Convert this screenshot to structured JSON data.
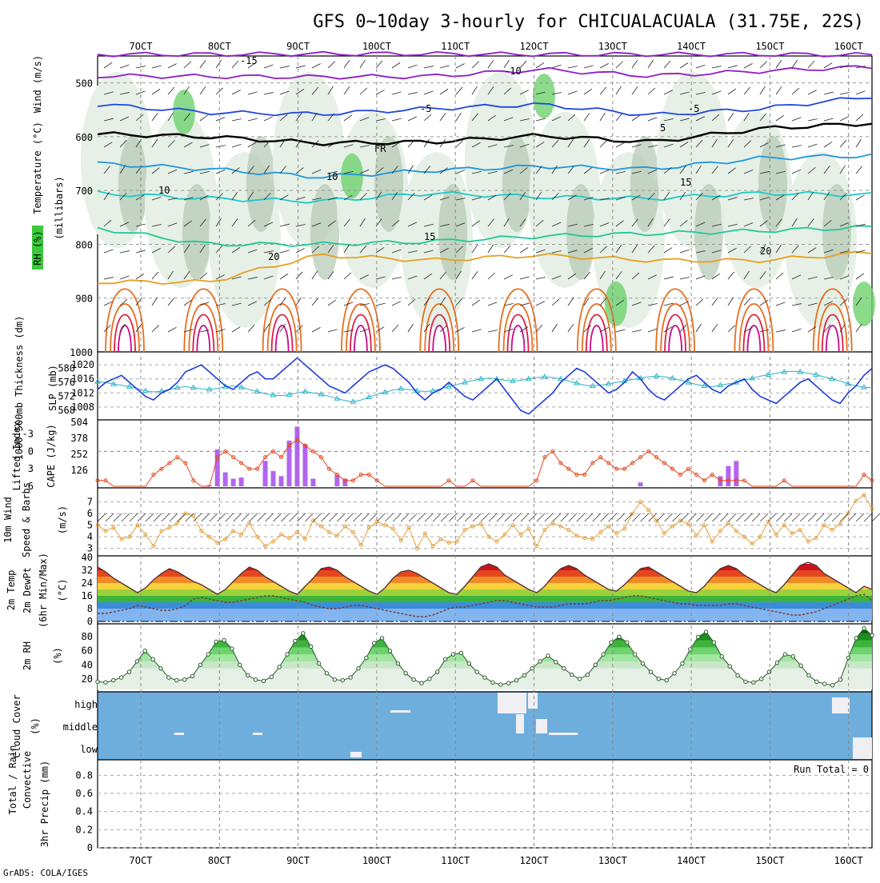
{
  "title": "GFS 0~10day 3-hourly for CHICUALACUALA (31.75E, 22S)",
  "footer": "GrADS: COLA/IGES",
  "time_labels": [
    "7OCT",
    "8OCT",
    "9OCT",
    "10OCT",
    "11OCT",
    "12OCT",
    "13OCT",
    "14OCT",
    "15OCT",
    "16OCT"
  ],
  "colors": {
    "rh_light": "#e6f0e6",
    "rh_mid": "#b4c8b4",
    "rh_dark": "#6ed26e",
    "temp_colors": [
      "#8c1ec8",
      "#1e46dc",
      "#1e96dc",
      "#1ec8c8",
      "#1ec896",
      "#e6a01e",
      "#e66e1e",
      "#dc1e46",
      "#c80a8c"
    ],
    "slp": "#1e3cdc",
    "thickness": "#28b4c8",
    "lifted": "#e6461e",
    "cape": "#b464f0",
    "wind": "#e6a03c",
    "cloud": "#6eaedc",
    "bands": [
      "#c8141e",
      "#e6461e",
      "#f08c28",
      "#f5d23c",
      "#9bd23c",
      "#3cb43c",
      "#3c8cdc",
      "#82b4f0"
    ]
  },
  "panel_labels": {
    "upper_rh": "RH (%)",
    "upper_temp": "Temperature (°C)",
    "upper_wind": "Wind (m/s)",
    "upper_pressure": "(millibars)",
    "thick": "1000-500mb Thickness (dm)",
    "slp": "SLP (mb)",
    "lifted": "Lifted Index",
    "cape": "CAPE (J/kg)",
    "wind10": "10m Wind",
    "wind_sb": "Speed & Barbs",
    "wind_unit": "(m/s)",
    "t2m_a": "2m Temp",
    "t2m_b": "2m DewPt",
    "t2m_c": "(6hr Min/Max)",
    "t2m_unit": "(°C)",
    "rh2m": "2m RH",
    "rh2m_unit": "(%)",
    "cloud": "Cloud Cover",
    "cloud_unit": "(%)",
    "precip_a": "Total / Rain",
    "precip_b": "Convective",
    "precip_c": "3hr Precip (mm)",
    "run_total": "Run Total = 0"
  },
  "chart_data": [
    {
      "type": "heatmap",
      "ylabel": "(millibars)",
      "ytick_labels": [
        "500",
        "600",
        "700",
        "800",
        "900",
        "1000"
      ],
      "ylim": [
        1000,
        450
      ],
      "contour_labels": [
        "-15",
        "-10",
        "-5",
        "FR",
        "-5",
        "5",
        "10",
        "10",
        "15",
        "15",
        "20",
        "20"
      ],
      "series": [
        {
          "name": "-15",
          "values": [
            447,
            447,
            446,
            446,
            447,
            447,
            447,
            448
          ]
        },
        {
          "name": "-10",
          "values": [
            487,
            488,
            489,
            488,
            475,
            487,
            478,
            470
          ]
        },
        {
          "name": "-5",
          "values": [
            540,
            555,
            558,
            548,
            540,
            560,
            548,
            525
          ]
        },
        {
          "name": "FR",
          "values": [
            595,
            600,
            612,
            610,
            598,
            610,
            585,
            575
          ]
        },
        {
          "name": "5",
          "values": [
            650,
            660,
            675,
            663,
            655,
            660,
            640,
            635
          ]
        },
        {
          "name": "10",
          "values": [
            705,
            715,
            720,
            705,
            712,
            715,
            705,
            708
          ]
        },
        {
          "name": "15",
          "values": [
            770,
            800,
            800,
            795,
            785,
            780,
            775,
            768
          ]
        },
        {
          "name": "20",
          "values": [
            870,
            870,
            820,
            830,
            820,
            830,
            830,
            815
          ]
        }
      ]
    },
    {
      "type": "line",
      "left_ylabel": "1000-500mb Thickness (dm)",
      "right_ylabel": "SLP (mb)",
      "thickness_ticks": [
        568,
        572,
        576,
        580
      ],
      "slp_ticks": [
        1008,
        1012,
        1016,
        1020
      ],
      "series": [
        {
          "name": "SLP (mb)",
          "values": [
            1013,
            1015,
            1016,
            1017,
            1015,
            1013,
            1011,
            1010,
            1012,
            1013,
            1015,
            1018,
            1019,
            1020,
            1018,
            1016,
            1014,
            1013,
            1015,
            1017,
            1018,
            1016,
            1016,
            1018,
            1020,
            1022,
            1020,
            1018,
            1016,
            1014,
            1013,
            1012,
            1014,
            1016,
            1018,
            1019,
            1020,
            1019,
            1017,
            1015,
            1012,
            1010,
            1012,
            1013,
            1015,
            1013,
            1011,
            1010,
            1012,
            1014,
            1016,
            1013,
            1010,
            1007,
            1006,
            1008,
            1010,
            1012,
            1015,
            1017,
            1019,
            1018,
            1016,
            1014,
            1012,
            1013,
            1015,
            1018,
            1016,
            1013,
            1011,
            1010,
            1012,
            1014,
            1016,
            1017,
            1015,
            1013,
            1012,
            1014,
            1015,
            1016,
            1013,
            1011,
            1010,
            1009,
            1011,
            1013,
            1015,
            1016,
            1014,
            1012,
            1010,
            1009,
            1012,
            1014,
            1017,
            1019
          ]
        },
        {
          "name": "Thickness (dm)",
          "values": [
            576.2,
            576.0,
            575.5,
            575.2,
            574.8,
            574.2,
            573.6,
            573.3,
            573.5,
            574.0,
            574.5,
            574.8,
            574.5,
            574.2,
            574.0,
            574.3,
            574.8,
            575.0,
            574.6,
            574.0,
            573.4,
            572.8,
            572.4,
            572.2,
            572.5,
            573.0,
            573.4,
            573.0,
            572.6,
            572.0,
            571.4,
            570.8,
            570.5,
            571.0,
            571.8,
            572.6,
            573.2,
            573.8,
            574.2,
            574.0,
            573.6,
            573.4,
            573.6,
            574.2,
            574.8,
            575.4,
            576.0,
            576.5,
            577.0,
            577.2,
            577.0,
            576.6,
            576.4,
            576.6,
            577.0,
            577.4,
            577.6,
            577.4,
            577.0,
            576.4,
            575.8,
            575.2,
            575.0,
            575.2,
            575.6,
            576.0,
            576.4,
            576.8,
            577.2,
            577.6,
            577.8,
            577.6,
            577.2,
            576.6,
            576.0,
            575.4,
            575.0,
            574.8,
            575.2,
            575.6,
            576.0,
            576.6,
            577.2,
            577.8,
            578.2,
            578.6,
            579.0,
            579.2,
            579.0,
            578.6,
            578.2,
            577.6,
            577.0,
            576.4,
            575.6,
            575.0,
            574.6,
            574.5
          ]
        }
      ]
    },
    {
      "type": "bar",
      "left_ylabel": "Lifted Index",
      "right_ylabel": "CAPE (J/kg)",
      "li_ticks": [
        -3,
        0,
        3,
        6
      ],
      "cape_ticks": [
        126,
        252,
        378,
        504
      ],
      "series": [
        {
          "name": "Lifted Index",
          "values": [
            5,
            5,
            6,
            6,
            6,
            6,
            6,
            4,
            3,
            2,
            1,
            2,
            5,
            6,
            6,
            1,
            0,
            1,
            2,
            3,
            3,
            1,
            0,
            1,
            -1,
            -2,
            -1,
            0,
            1,
            3,
            4,
            5,
            5,
            4,
            4,
            5,
            6,
            6,
            6,
            6,
            6,
            6,
            6,
            6,
            5,
            6,
            6,
            5,
            6,
            6,
            6,
            6,
            6,
            6,
            6,
            5,
            1,
            0,
            2,
            3,
            4,
            4,
            2,
            1,
            2,
            3,
            3,
            2,
            1,
            0,
            1,
            2,
            3,
            4,
            3,
            4,
            5,
            4,
            5,
            5,
            5,
            5,
            6,
            6,
            6,
            6,
            5,
            6,
            6,
            6,
            6,
            6,
            6,
            6,
            6,
            6,
            4,
            5
          ]
        },
        {
          "name": "CAPE (J/kg)",
          "values": [
            0,
            0,
            0,
            0,
            0,
            0,
            0,
            0,
            0,
            0,
            0,
            0,
            0,
            0,
            10,
            290,
            110,
            60,
            70,
            0,
            0,
            200,
            120,
            80,
            360,
            470,
            330,
            60,
            0,
            0,
            90,
            60,
            0,
            0,
            0,
            0,
            0,
            0,
            0,
            0,
            0,
            0,
            0,
            0,
            0,
            0,
            0,
            0,
            0,
            0,
            0,
            0,
            0,
            0,
            0,
            0,
            0,
            0,
            0,
            0,
            0,
            0,
            0,
            0,
            0,
            0,
            0,
            0,
            30,
            0,
            0,
            0,
            0,
            0,
            0,
            0,
            0,
            0,
            80,
            160,
            200,
            0,
            0,
            0,
            0,
            0,
            0,
            0,
            0,
            0,
            0,
            0,
            0,
            0,
            0,
            0,
            0,
            0
          ]
        }
      ]
    },
    {
      "type": "line",
      "ylabel": "10m Wind Speed & Barbs (m/s)",
      "yticks": [
        3,
        4,
        5,
        6,
        7
      ],
      "series": [
        {
          "name": "Speed",
          "values": [
            5.0,
            4.5,
            4.8,
            3.8,
            4.0,
            5.0,
            4.2,
            3.2,
            4.5,
            4.8,
            5.2,
            6.0,
            5.8,
            4.5,
            4.0,
            3.5,
            3.8,
            4.5,
            4.2,
            5.2,
            4.0,
            3.2,
            3.6,
            4.2,
            3.9,
            4.4,
            3.8,
            5.4,
            4.9,
            4.4,
            4.1,
            4.9,
            4.4,
            3.3,
            4.8,
            5.3,
            5.0,
            4.7,
            3.7,
            4.8,
            3.0,
            4.3,
            3.2,
            3.8,
            3.5,
            3.6,
            4.6,
            4.9,
            5.1,
            4.0,
            3.6,
            4.2,
            5.0,
            4.2,
            4.7,
            3.2,
            4.6,
            5.2,
            4.9,
            4.6,
            4.1,
            3.9,
            3.8,
            4.4,
            4.9,
            4.3,
            4.7,
            6.0,
            7.0,
            6.3,
            5.4,
            4.3,
            4.9,
            5.4,
            5.1,
            4.1,
            5.0,
            3.6,
            4.5,
            5.2,
            4.5,
            4.0,
            3.4,
            4.0,
            5.3,
            4.2,
            5.0,
            4.3,
            4.6,
            3.6,
            3.9,
            5.0,
            4.6,
            5.1,
            6.0,
            7.1,
            7.6,
            6.4
          ]
        }
      ]
    },
    {
      "type": "area",
      "ylabel": "2m Temp 2m DewPt (6hr Min/Max) (°C)",
      "yticks": [
        0,
        8,
        16,
        24,
        32,
        40
      ],
      "series": [
        {
          "name": "2m Temp",
          "values": [
            34,
            31,
            27,
            24,
            21,
            18,
            21,
            26,
            30,
            33,
            31,
            28,
            25,
            23,
            20,
            17,
            20,
            25,
            30,
            34,
            32,
            28,
            25,
            22,
            19,
            17,
            22,
            27,
            33,
            34,
            32,
            28,
            25,
            22,
            19,
            17,
            21,
            27,
            31,
            32,
            30,
            27,
            24,
            21,
            18,
            17,
            22,
            28,
            34,
            36,
            34,
            29,
            26,
            23,
            20,
            18,
            22,
            28,
            33,
            35,
            33,
            29,
            26,
            23,
            20,
            19,
            23,
            28,
            33,
            34,
            31,
            28,
            25,
            22,
            19,
            18,
            22,
            28,
            33,
            35,
            33,
            29,
            26,
            23,
            20,
            18,
            23,
            29,
            35,
            37,
            35,
            30,
            27,
            24,
            21,
            18,
            22,
            20
          ]
        },
        {
          "name": "2m DewPt",
          "values": [
            5,
            5,
            6,
            7,
            8,
            10,
            9,
            8,
            7,
            7,
            8,
            10,
            14,
            15,
            14,
            13,
            12,
            12,
            13,
            14,
            15,
            16,
            16,
            15,
            14,
            13,
            12,
            10,
            9,
            8,
            8,
            9,
            10,
            10,
            9,
            8,
            7,
            6,
            5,
            4,
            3,
            3,
            4,
            6,
            8,
            9,
            9,
            10,
            11,
            12,
            13,
            13,
            12,
            11,
            10,
            9,
            9,
            9,
            10,
            11,
            11,
            11,
            12,
            13,
            13,
            14,
            15,
            16,
            16,
            15,
            14,
            13,
            12,
            11,
            11,
            10,
            10,
            10,
            10,
            11,
            11,
            10,
            9,
            8,
            7,
            6,
            5,
            4,
            4,
            5,
            6,
            8,
            10,
            12,
            14,
            16,
            17,
            13
          ]
        }
      ]
    },
    {
      "type": "area",
      "ylabel": "2m RH (%)",
      "yticks": [
        20,
        40,
        60,
        80
      ],
      "series": [
        {
          "name": "2m RH",
          "values": [
            16,
            15,
            18,
            22,
            30,
            45,
            60,
            48,
            35,
            22,
            18,
            19,
            24,
            40,
            55,
            73,
            75,
            63,
            40,
            25,
            19,
            17,
            23,
            37,
            55,
            74,
            85,
            66,
            42,
            28,
            19,
            18,
            22,
            35,
            50,
            71,
            78,
            60,
            42,
            28,
            19,
            14,
            20,
            30,
            48,
            55,
            57,
            42,
            30,
            22,
            15,
            12,
            14,
            18,
            25,
            35,
            45,
            53,
            44,
            35,
            26,
            20,
            26,
            40,
            55,
            72,
            80,
            72,
            55,
            42,
            30,
            20,
            18,
            28,
            42,
            62,
            80,
            87,
            72,
            52,
            38,
            25,
            16,
            15,
            20,
            30,
            43,
            55,
            52,
            39,
            25,
            16,
            13,
            11,
            19,
            50,
            78,
            92,
            82
          ]
        }
      ]
    },
    {
      "type": "heatmap",
      "ylabel": "Cloud Cover (%)",
      "ytick_labels": [
        "high",
        "middle",
        "low"
      ]
    },
    {
      "type": "bar",
      "ylabel": "3hr Precip (mm)",
      "yticks": [
        0,
        0.2,
        0.4,
        0.6,
        0.8
      ],
      "ylim": [
        0,
        0.9
      ],
      "annotation": "Run Total = 0"
    }
  ]
}
